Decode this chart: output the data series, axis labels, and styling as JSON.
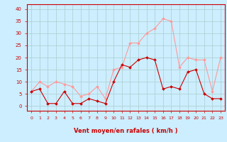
{
  "hours": [
    0,
    1,
    2,
    3,
    4,
    5,
    6,
    7,
    8,
    9,
    10,
    11,
    12,
    13,
    14,
    15,
    16,
    17,
    18,
    19,
    20,
    21,
    22,
    23
  ],
  "wind_avg": [
    6,
    7,
    1,
    1,
    6,
    1,
    1,
    3,
    2,
    1,
    10,
    17,
    16,
    19,
    20,
    19,
    7,
    8,
    7,
    14,
    15,
    5,
    3,
    3
  ],
  "wind_gust": [
    6,
    10,
    8,
    10,
    9,
    8,
    4,
    5,
    8,
    3,
    15,
    16,
    26,
    26,
    30,
    32,
    36,
    35,
    16,
    20,
    19,
    19,
    6,
    20
  ],
  "color_avg": "#cc0000",
  "color_gust": "#ff9999",
  "bg_color": "#cceeff",
  "grid_color": "#aacccc",
  "xlabel": "Vent moyen/en rafales ( km/h )",
  "xlabel_color": "#cc0000",
  "ylabel_color": "#cc0000",
  "yticks": [
    0,
    5,
    10,
    15,
    20,
    25,
    30,
    35,
    40
  ],
  "ylim": [
    -2,
    42
  ],
  "xlim": [
    -0.5,
    23.5
  ]
}
